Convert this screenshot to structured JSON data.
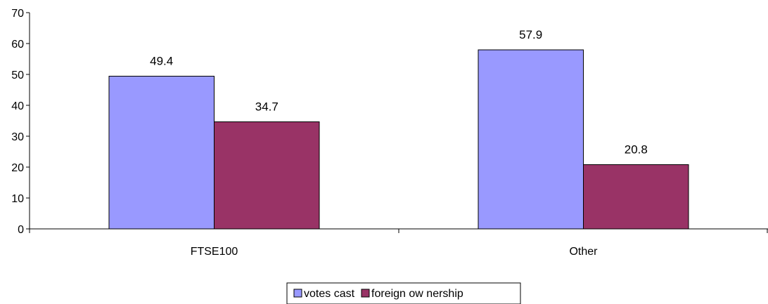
{
  "chart_data": {
    "type": "bar",
    "title": "",
    "xlabel": "",
    "ylabel": "",
    "categories": [
      "FTSE100",
      "Other"
    ],
    "series": [
      {
        "name": "votes cast",
        "values": [
          49.4,
          57.9
        ],
        "labels": [
          "49.4",
          "57.9"
        ],
        "color": "#9999ff"
      },
      {
        "name": "foreign ow nership",
        "values": [
          34.7,
          20.8
        ],
        "labels": [
          "34.7",
          "20.8"
        ],
        "color": "#993366"
      }
    ],
    "ylim": [
      0,
      70
    ],
    "yticks": [
      0,
      10,
      20,
      30,
      40,
      50,
      60,
      70
    ],
    "yticklabels": [
      "0",
      "10",
      "20",
      "30",
      "40",
      "50",
      "60",
      "70"
    ],
    "grid": false,
    "legend_position": "bottom-center"
  }
}
